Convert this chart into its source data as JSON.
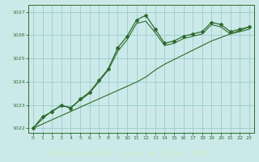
{
  "title": "Graphe pression niveau de la mer (hPa)",
  "bg_color": "#cce9e9",
  "plot_bg": "#cce9e9",
  "grid_color": "#99cccc",
  "line_color": "#2d6b2d",
  "label_bg": "#336633",
  "label_fg": "#cceecc",
  "xlim": [
    -0.5,
    23.5
  ],
  "ylim": [
    1021.8,
    1027.3
  ],
  "yticks": [
    1022,
    1023,
    1024,
    1025,
    1026,
    1027
  ],
  "xticks": [
    0,
    1,
    2,
    3,
    4,
    5,
    6,
    7,
    8,
    9,
    10,
    11,
    12,
    13,
    14,
    15,
    16,
    17,
    18,
    19,
    20,
    21,
    22,
    23
  ],
  "x": [
    0,
    1,
    2,
    3,
    4,
    5,
    6,
    7,
    8,
    9,
    10,
    11,
    12,
    13,
    14,
    15,
    16,
    17,
    18,
    19,
    20,
    21,
    22,
    23
  ],
  "y_main": [
    1022.0,
    1022.5,
    1022.7,
    1023.0,
    1022.85,
    1023.25,
    1023.55,
    1024.05,
    1024.55,
    1025.45,
    1025.95,
    1026.65,
    1026.85,
    1026.25,
    1025.65,
    1025.75,
    1025.95,
    1026.05,
    1026.15,
    1026.55,
    1026.45,
    1026.15,
    1026.25,
    1026.35
  ],
  "y_smooth": [
    1022.0,
    1022.4,
    1022.75,
    1022.95,
    1022.9,
    1023.2,
    1023.5,
    1024.0,
    1024.5,
    1025.3,
    1025.8,
    1026.5,
    1026.6,
    1026.1,
    1025.55,
    1025.65,
    1025.85,
    1025.95,
    1026.05,
    1026.45,
    1026.35,
    1026.05,
    1026.15,
    1026.25
  ],
  "y_trend": [
    1022.0,
    1022.18,
    1022.36,
    1022.54,
    1022.72,
    1022.9,
    1023.08,
    1023.26,
    1023.44,
    1023.62,
    1023.8,
    1023.98,
    1024.2,
    1024.5,
    1024.75,
    1024.95,
    1025.15,
    1025.35,
    1025.55,
    1025.75,
    1025.9,
    1026.05,
    1026.2,
    1026.35
  ]
}
